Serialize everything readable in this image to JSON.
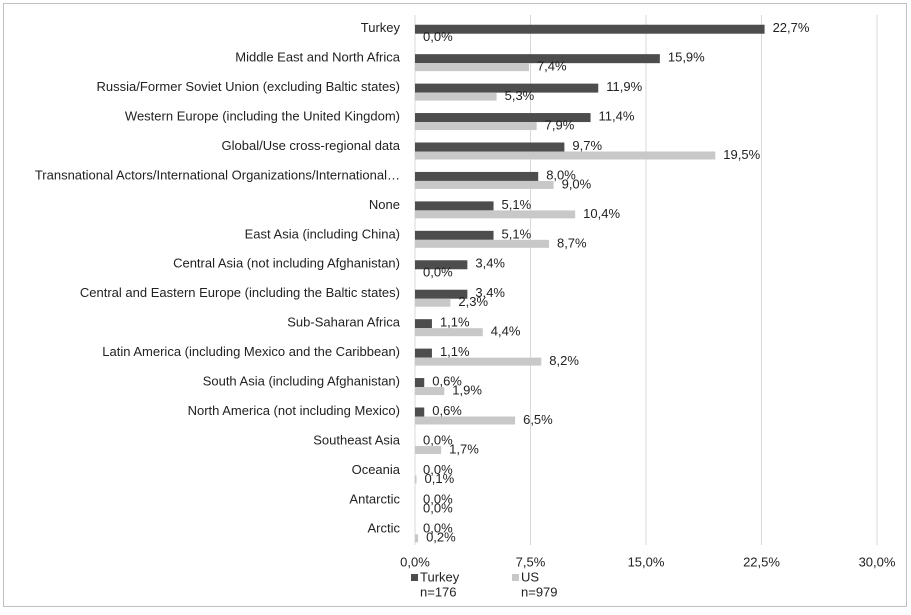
{
  "chart_data": {
    "type": "hbar",
    "categories": [
      "Turkey",
      "Middle East and North Africa",
      "Russia/Former Soviet Union (excluding Baltic states)",
      "Western Europe (including the United Kingdom)",
      "Global/Use cross-regional data",
      "Transnational Actors/International Organizations/International…",
      "None",
      "East Asia (including China)",
      "Central Asia (not including Afghanistan)",
      "Central and Eastern Europe (including the Baltic states)",
      "Sub-Saharan Africa",
      "Latin America (including Mexico and the Caribbean)",
      "South Asia (including Afghanistan)",
      "North America (not including Mexico)",
      "Southeast Asia",
      "Oceania",
      "Antarctic",
      "Arctic"
    ],
    "series": [
      {
        "name": "Turkey",
        "sample_size": "n=176",
        "color": "#4d4d4d",
        "values": [
          22.7,
          15.9,
          11.9,
          11.4,
          9.7,
          8.0,
          5.1,
          5.1,
          3.4,
          3.4,
          1.1,
          1.1,
          0.6,
          0.6,
          0.0,
          0.0,
          0.0,
          0.0
        ],
        "value_labels": [
          "22,7%",
          "15,9%",
          "11,9%",
          "11,4%",
          "9,7%",
          "8,0%",
          "5,1%",
          "5,1%",
          "3,4%",
          "3,4%",
          "1,1%",
          "1,1%",
          "0,6%",
          "0,6%",
          "0,0%",
          "0,0%",
          "0,0%",
          "0,0%"
        ]
      },
      {
        "name": "US",
        "sample_size": "n=979",
        "color": "#c8c8c8",
        "values": [
          0.0,
          7.4,
          5.3,
          7.9,
          19.5,
          9.0,
          10.4,
          8.7,
          0.0,
          2.3,
          4.4,
          8.2,
          1.9,
          6.5,
          1.7,
          0.1,
          0.0,
          0.2
        ],
        "value_labels": [
          "0,0%",
          "7,4%",
          "5,3%",
          "7,9%",
          "19,5%",
          "9,0%",
          "10,4%",
          "8,7%",
          "0,0%",
          "2,3%",
          "4,4%",
          "8,2%",
          "1,9%",
          "6,5%",
          "1,7%",
          "0,1%",
          "0,0%",
          "0,2%"
        ]
      }
    ],
    "xlim": [
      0,
      30
    ],
    "xticks": [
      {
        "value": 0,
        "label": "0,0%"
      },
      {
        "value": 7.5,
        "label": "7,5%"
      },
      {
        "value": 15,
        "label": "15,0%"
      },
      {
        "value": 22.5,
        "label": "22,5%"
      },
      {
        "value": 30,
        "label": "30,0%"
      }
    ],
    "grid": true
  }
}
